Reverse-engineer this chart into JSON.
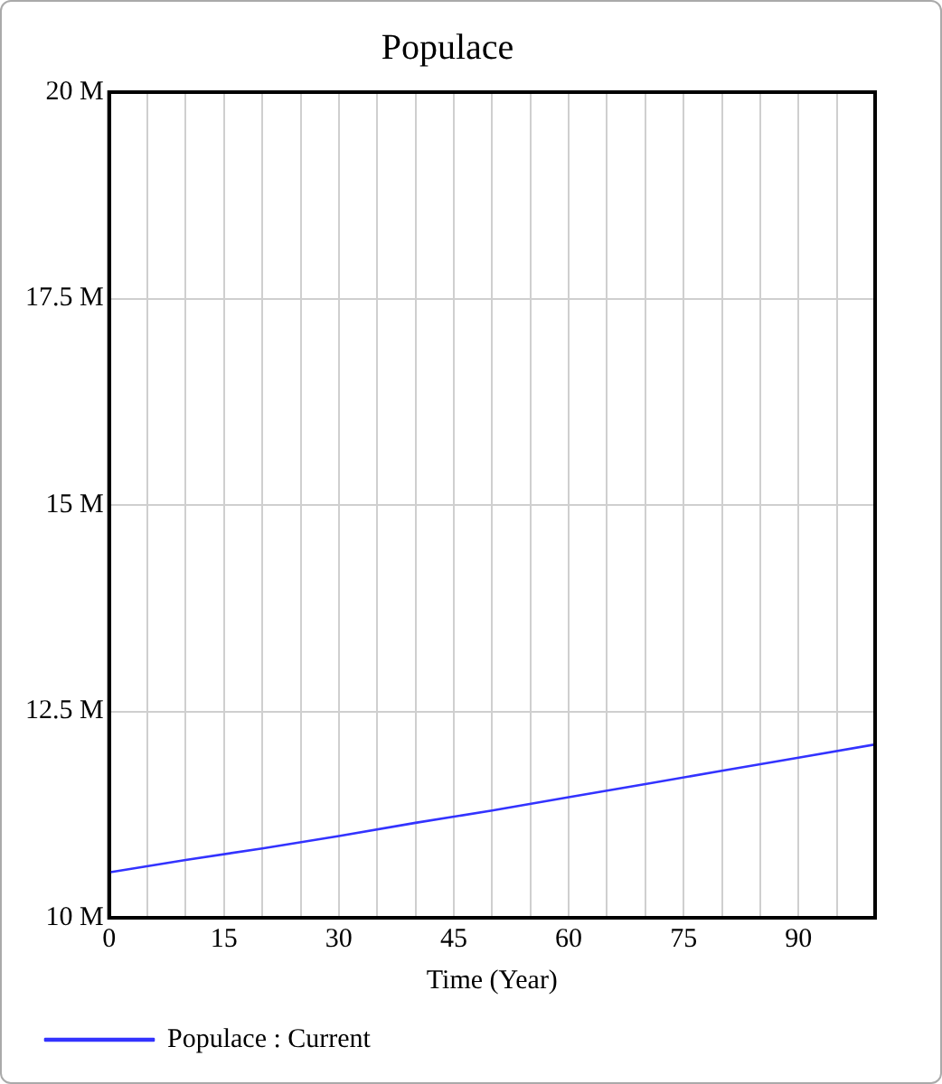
{
  "chart_data": {
    "type": "line",
    "title": "Populace",
    "xlabel": "Time (Year)",
    "x": [
      0,
      10,
      20,
      30,
      40,
      50,
      60,
      70,
      80,
      90,
      100
    ],
    "series": [
      {
        "name": "Populace : Current",
        "color": "#3333ff",
        "values": [
          10.55,
          10.7,
          10.84,
          10.99,
          11.15,
          11.3,
          11.46,
          11.62,
          11.78,
          11.94,
          12.1
        ]
      }
    ],
    "xlim": [
      0,
      100
    ],
    "xticks": [
      0,
      {
        "value": 5,
        "label": null
      },
      {
        "value": 10,
        "label": null
      },
      15,
      {
        "value": 20,
        "label": null
      },
      {
        "value": 25,
        "label": null
      },
      30,
      {
        "value": 35,
        "label": null
      },
      {
        "value": 40,
        "label": null
      },
      45,
      {
        "value": 50,
        "label": null
      },
      {
        "value": 55,
        "label": null
      },
      60,
      {
        "value": 65,
        "label": null
      },
      {
        "value": 70,
        "label": null
      },
      75,
      {
        "value": 80,
        "label": null
      },
      {
        "value": 85,
        "label": null
      },
      90,
      {
        "value": 95,
        "label": null
      },
      {
        "value": 100,
        "label": null
      }
    ],
    "ylim": [
      10,
      20
    ],
    "yticks": [
      {
        "value": 10,
        "label": "10 M"
      },
      {
        "value": 12.5,
        "label": "12.5 M"
      },
      {
        "value": 15,
        "label": "15 M"
      },
      {
        "value": 17.5,
        "label": "17.5 M"
      },
      {
        "value": 20,
        "label": "20 M"
      }
    ],
    "grid": true,
    "legend": "bottom",
    "marker": "none",
    "line_style": "solid"
  }
}
